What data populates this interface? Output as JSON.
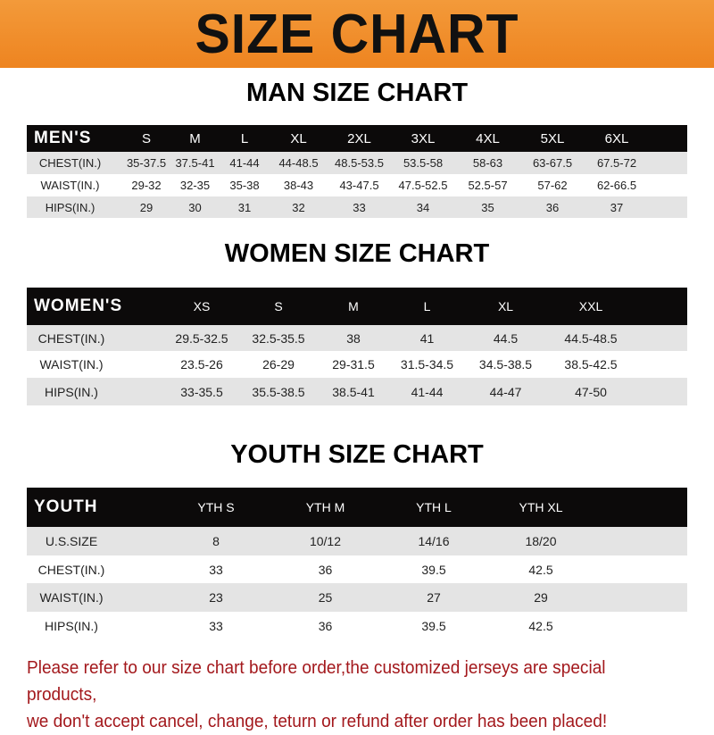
{
  "banner": "SIZE CHART",
  "men": {
    "title": "MAN SIZE CHART",
    "header": [
      "MEN'S",
      "S",
      "M",
      "L",
      "XL",
      "2XL",
      "3XL",
      "4XL",
      "5XL",
      "6XL"
    ],
    "rows": [
      [
        "CHEST(IN.)",
        "35-37.5",
        "37.5-41",
        "41-44",
        "44-48.5",
        "48.5-53.5",
        "53.5-58",
        "58-63",
        "63-67.5",
        "67.5-72"
      ],
      [
        "WAIST(IN.)",
        "29-32",
        "32-35",
        "35-38",
        "38-43",
        "43-47.5",
        "47.5-52.5",
        "52.5-57",
        "57-62",
        "62-66.5"
      ],
      [
        "HIPS(IN.)",
        "29",
        "30",
        "31",
        "32",
        "33",
        "34",
        "35",
        "36",
        "37"
      ]
    ]
  },
  "women": {
    "title": "WOMEN SIZE CHART",
    "header": [
      "WOMEN'S",
      "XS",
      "S",
      "M",
      "L",
      "XL",
      "XXL"
    ],
    "rows": [
      [
        "CHEST(IN.)",
        "29.5-32.5",
        "32.5-35.5",
        "38",
        "41",
        "44.5",
        "44.5-48.5"
      ],
      [
        "WAIST(IN.)",
        "23.5-26",
        "26-29",
        "29-31.5",
        "31.5-34.5",
        "34.5-38.5",
        "38.5-42.5"
      ],
      [
        "HIPS(IN.)",
        "33-35.5",
        "35.5-38.5",
        "38.5-41",
        "41-44",
        "44-47",
        "47-50"
      ]
    ]
  },
  "youth": {
    "title": "YOUTH SIZE CHART",
    "header": [
      "YOUTH",
      "YTH S",
      "YTH M",
      "YTH L",
      "YTH XL"
    ],
    "rows": [
      [
        "U.S.SIZE",
        "8",
        "10/12",
        "14/16",
        "18/20"
      ],
      [
        "CHEST(IN.)",
        "33",
        "36",
        "39.5",
        "42.5"
      ],
      [
        "WAIST(IN.)",
        "23",
        "25",
        "27",
        "29"
      ],
      [
        "HIPS(IN.)",
        "33",
        "36",
        "39.5",
        "42.5"
      ]
    ]
  },
  "note": {
    "line1": "Please refer to our size chart before order,the customized jerseys are special products,",
    "line2": "we don't accept cancel, change, teturn or refund after order has been placed!"
  },
  "colors": {
    "banner": "#ee8420",
    "header_row": "#0c0a0a",
    "stripe": "#e4e4e4",
    "note": "#a3181c"
  }
}
